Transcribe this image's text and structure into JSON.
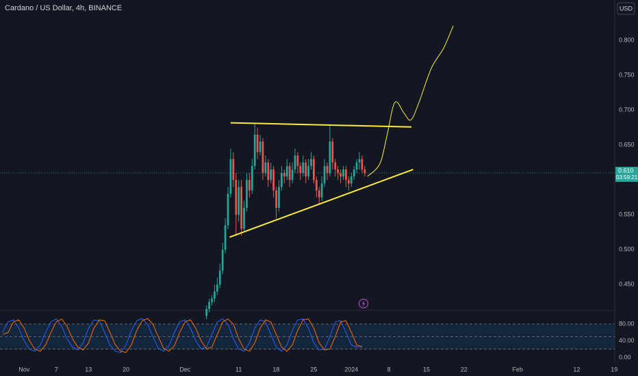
{
  "chart_data": {
    "type": "candlestick",
    "title": "Cardano / US Dollar, 4h, BINANCE",
    "currency": "USD",
    "up_color": "#26a69a",
    "down_color": "#ef5350",
    "xlim": [
      -4.5,
      110.1
    ],
    "xticks": [
      {
        "value": 0,
        "label": "Nov"
      },
      {
        "value": 6,
        "label": "7"
      },
      {
        "value": 12,
        "label": "13"
      },
      {
        "value": 19,
        "label": "20"
      },
      {
        "value": 30,
        "label": "Dec"
      },
      {
        "value": 40,
        "label": "11"
      },
      {
        "value": 47,
        "label": "18"
      },
      {
        "value": 54,
        "label": "25"
      },
      {
        "value": 61,
        "label": "2024"
      },
      {
        "value": 68,
        "label": "8"
      },
      {
        "value": 75,
        "label": "15"
      },
      {
        "value": 82,
        "label": "22"
      },
      {
        "value": 92,
        "label": "Feb"
      },
      {
        "value": 103,
        "label": "12"
      },
      {
        "value": 110,
        "label": "19"
      }
    ],
    "ylim": [
      0.414,
      0.858
    ],
    "yticks": [
      {
        "value": 0.8,
        "label": "0.800"
      },
      {
        "value": 0.75,
        "label": "0.750"
      },
      {
        "value": 0.7,
        "label": "0.700"
      },
      {
        "value": 0.65,
        "label": "0.650"
      },
      {
        "value": 0.55,
        "label": "0.550"
      },
      {
        "value": 0.5,
        "label": "0.500"
      },
      {
        "value": 0.45,
        "label": "0.450"
      }
    ],
    "last_price": 0.61,
    "last_price_label": "0.610",
    "countdown": "03:59:21",
    "x": [
      34,
      34.5,
      35,
      35.5,
      36,
      36.5,
      37,
      37.5,
      38,
      38.5,
      39,
      39.5,
      40,
      40.5,
      41,
      41.5,
      42,
      42.5,
      43,
      43.5,
      44,
      44.5,
      45,
      45.5,
      46,
      46.5,
      47,
      47.5,
      48,
      48.5,
      49,
      49.5,
      50,
      50.5,
      51,
      51.5,
      52,
      52.5,
      53,
      53.5,
      54,
      54.5,
      55,
      55.5,
      56,
      56.5,
      57,
      57.5,
      58,
      58.5,
      59,
      59.5,
      60,
      60.5,
      61,
      61.5,
      62,
      62.5,
      63,
      63.5
    ],
    "open": [
      0.405,
      0.415,
      0.425,
      0.43,
      0.44,
      0.45,
      0.47,
      0.5,
      0.535,
      0.58,
      0.63,
      0.6,
      0.55,
      0.59,
      0.53,
      0.56,
      0.6,
      0.585,
      0.62,
      0.665,
      0.64,
      0.655,
      0.61,
      0.625,
      0.6,
      0.615,
      0.585,
      0.56,
      0.59,
      0.61,
      0.605,
      0.62,
      0.6,
      0.615,
      0.635,
      0.62,
      0.61,
      0.625,
      0.605,
      0.62,
      0.63,
      0.6,
      0.585,
      0.575,
      0.595,
      0.62,
      0.61,
      0.655,
      0.625,
      0.615,
      0.61,
      0.605,
      0.615,
      0.6,
      0.595,
      0.605,
      0.615,
      0.625,
      0.63,
      0.615
    ],
    "high": [
      0.42,
      0.43,
      0.435,
      0.45,
      0.46,
      0.48,
      0.51,
      0.545,
      0.59,
      0.645,
      0.64,
      0.61,
      0.6,
      0.6,
      0.57,
      0.61,
      0.61,
      0.63,
      0.68,
      0.675,
      0.665,
      0.66,
      0.635,
      0.63,
      0.625,
      0.62,
      0.59,
      0.6,
      0.62,
      0.615,
      0.63,
      0.625,
      0.625,
      0.645,
      0.64,
      0.625,
      0.635,
      0.63,
      0.63,
      0.64,
      0.635,
      0.605,
      0.59,
      0.605,
      0.63,
      0.625,
      0.68,
      0.66,
      0.63,
      0.62,
      0.615,
      0.62,
      0.62,
      0.605,
      0.61,
      0.62,
      0.63,
      0.64,
      0.635,
      0.62
    ],
    "low": [
      0.4,
      0.41,
      0.42,
      0.425,
      0.435,
      0.445,
      0.465,
      0.495,
      0.53,
      0.575,
      0.59,
      0.52,
      0.54,
      0.52,
      0.525,
      0.555,
      0.575,
      0.58,
      0.615,
      0.63,
      0.635,
      0.6,
      0.605,
      0.59,
      0.595,
      0.575,
      0.545,
      0.555,
      0.585,
      0.595,
      0.6,
      0.59,
      0.595,
      0.61,
      0.61,
      0.6,
      0.605,
      0.595,
      0.6,
      0.615,
      0.595,
      0.575,
      0.565,
      0.57,
      0.59,
      0.6,
      0.605,
      0.615,
      0.605,
      0.6,
      0.595,
      0.6,
      0.59,
      0.585,
      0.59,
      0.6,
      0.61,
      0.615,
      0.61,
      0.605
    ],
    "close": [
      0.415,
      0.425,
      0.43,
      0.44,
      0.45,
      0.47,
      0.5,
      0.535,
      0.58,
      0.63,
      0.6,
      0.55,
      0.59,
      0.53,
      0.56,
      0.6,
      0.585,
      0.62,
      0.665,
      0.64,
      0.655,
      0.61,
      0.625,
      0.6,
      0.615,
      0.585,
      0.56,
      0.59,
      0.61,
      0.605,
      0.62,
      0.6,
      0.615,
      0.635,
      0.62,
      0.61,
      0.625,
      0.605,
      0.62,
      0.63,
      0.6,
      0.585,
      0.575,
      0.595,
      0.62,
      0.61,
      0.655,
      0.625,
      0.615,
      0.61,
      0.605,
      0.615,
      0.6,
      0.595,
      0.605,
      0.615,
      0.625,
      0.63,
      0.615,
      0.61
    ],
    "drawings": [
      {
        "color": "#ffeb3b",
        "x": [
          38.5,
          72.2
        ],
        "y": [
          0.682,
          0.676
        ]
      },
      {
        "color": "#ffeb3b",
        "x": [
          38.3,
          72.5
        ],
        "y": [
          0.518,
          0.615
        ]
      },
      {
        "color": "#ffeb3b",
        "x": [
          64.0,
          66.3,
          67.6,
          69.1,
          70.8,
          72.1,
          73.6,
          75.9,
          78.2,
          80.0
        ],
        "y": [
          0.605,
          0.623,
          0.662,
          0.711,
          0.696,
          0.686,
          0.711,
          0.76,
          0.789,
          0.821
        ]
      }
    ],
    "oscillator": {
      "ylim": [
        -19.6,
        111
      ],
      "yticks": [
        {
          "value": 80,
          "label": "80.00"
        },
        {
          "value": 40,
          "label": "40.00"
        },
        {
          "value": 0,
          "label": "0.00"
        }
      ],
      "levels": [
        80,
        50,
        20
      ],
      "x": [
        -4,
        -3,
        -2,
        -1,
        0,
        1,
        2,
        3,
        4,
        5,
        6,
        7,
        8,
        9,
        10,
        11,
        12,
        13,
        14,
        15,
        16,
        17,
        18,
        19,
        20,
        21,
        22,
        23,
        24,
        25,
        26,
        27,
        28,
        29,
        30,
        31,
        32,
        33,
        34,
        35,
        36,
        37,
        38,
        39,
        40,
        41,
        42,
        43,
        44,
        45,
        46,
        47,
        48,
        49,
        50,
        51,
        52,
        53,
        54,
        55,
        56,
        57,
        58,
        59,
        60,
        61,
        62,
        63
      ],
      "series": [
        {
          "color": "#2962ff",
          "values": [
            60,
            85,
            90,
            70,
            40,
            20,
            15,
            30,
            60,
            85,
            92,
            75,
            45,
            25,
            18,
            35,
            70,
            90,
            88,
            60,
            30,
            15,
            12,
            30,
            65,
            88,
            93,
            80,
            50,
            22,
            15,
            28,
            60,
            85,
            90,
            70,
            40,
            20,
            25,
            55,
            85,
            92,
            80,
            45,
            20,
            15,
            35,
            70,
            90,
            85,
            55,
            25,
            15,
            30,
            65,
            90,
            92,
            70,
            35,
            18,
            20,
            50,
            85,
            88,
            60,
            30,
            25,
            28
          ]
        },
        {
          "color": "#ff6d00",
          "values": [
            55,
            60,
            85,
            90,
            70,
            40,
            20,
            15,
            30,
            60,
            85,
            92,
            75,
            45,
            25,
            18,
            35,
            70,
            90,
            88,
            60,
            30,
            15,
            12,
            30,
            65,
            88,
            93,
            80,
            50,
            22,
            15,
            28,
            60,
            85,
            90,
            70,
            40,
            20,
            25,
            55,
            85,
            92,
            80,
            45,
            20,
            15,
            35,
            70,
            90,
            85,
            55,
            25,
            15,
            30,
            65,
            90,
            92,
            70,
            35,
            18,
            20,
            50,
            85,
            88,
            60,
            30,
            25
          ]
        }
      ]
    }
  }
}
